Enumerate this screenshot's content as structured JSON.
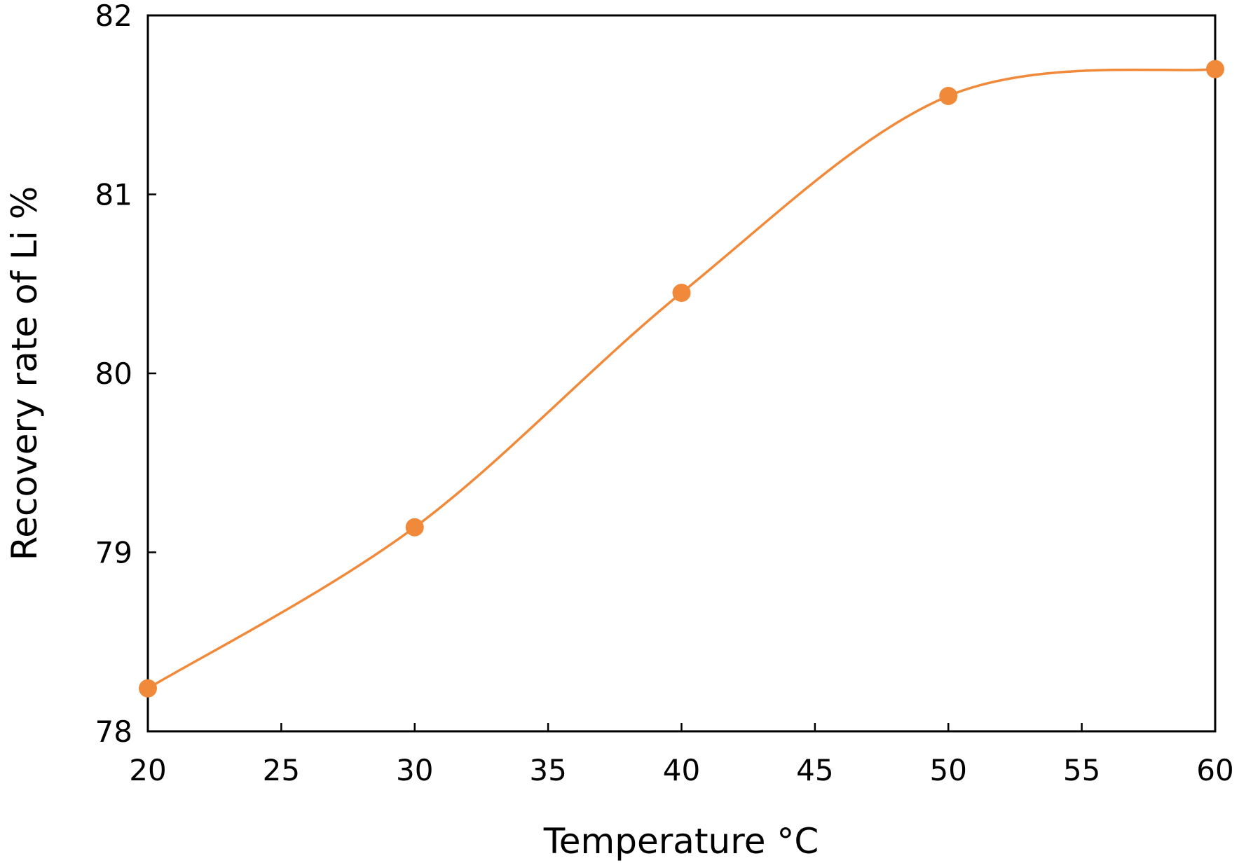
{
  "chart_data": {
    "type": "line",
    "title": "",
    "xlabel": "Temperature °C",
    "ylabel": "Recovery rate of Li %",
    "xlim": [
      20,
      60
    ],
    "ylim": [
      78,
      82
    ],
    "xticks": [
      20,
      25,
      30,
      35,
      40,
      45,
      50,
      55,
      60
    ],
    "yticks": [
      78,
      79,
      80,
      81,
      82
    ],
    "grid": false,
    "legend": "none",
    "smooth": true,
    "series": [
      {
        "color": "#f08a3a",
        "x": [
          20,
          30,
          40,
          50,
          60
        ],
        "y": [
          78.24,
          79.14,
          80.45,
          81.55,
          81.7
        ]
      }
    ]
  }
}
